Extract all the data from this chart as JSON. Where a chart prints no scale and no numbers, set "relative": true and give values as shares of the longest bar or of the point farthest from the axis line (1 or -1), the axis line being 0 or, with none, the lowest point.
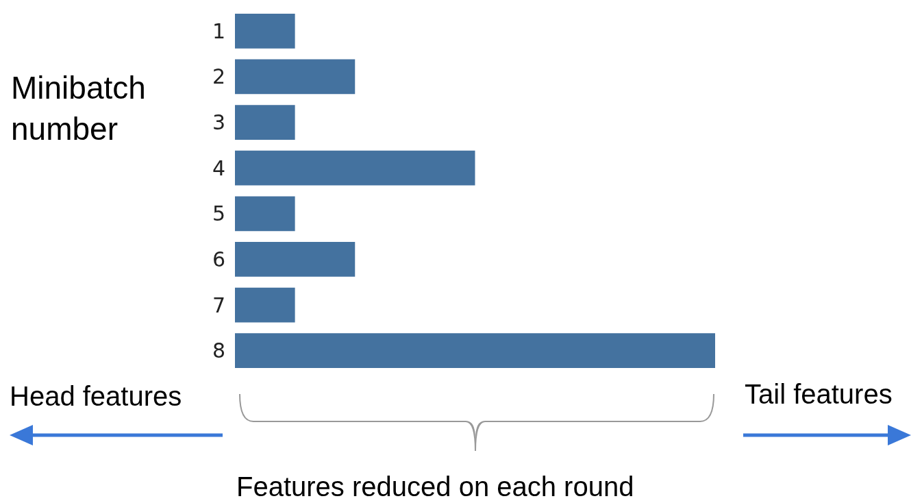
{
  "chart_data": {
    "type": "bar",
    "orientation": "horizontal",
    "relative": true,
    "categories": [
      "1",
      "2",
      "3",
      "4",
      "5",
      "6",
      "7",
      "8"
    ],
    "values": [
      0.125,
      0.25,
      0.125,
      0.5,
      0.125,
      0.25,
      0.125,
      1
    ],
    "color": "#44729f",
    "ylabel": "Minibatch number",
    "xlabel": "Features reduced on each round",
    "annotations": [
      "Head features",
      "Tail features"
    ]
  }
}
